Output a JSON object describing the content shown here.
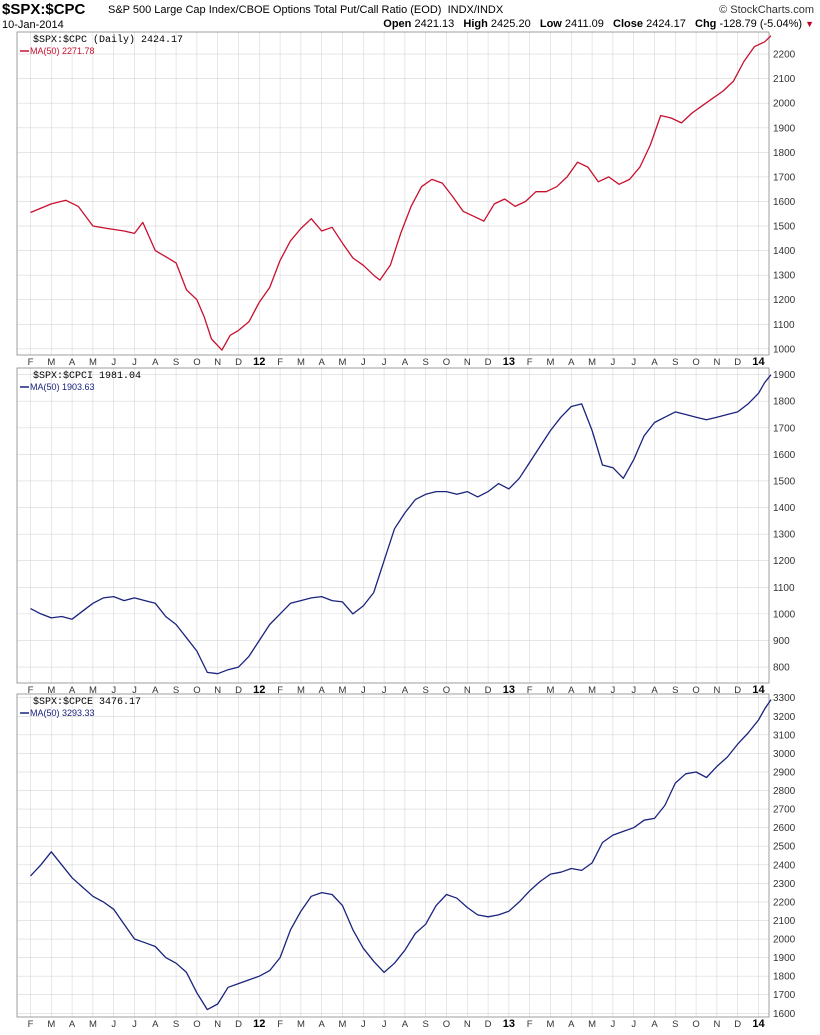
{
  "header": {
    "symbol": "$SPX:$CPC",
    "description": "S&P 500 Large Cap Index/CBOE Options Total Put/Call Ratio (EOD)",
    "exchange": "INDX/INDX",
    "date": "10-Jan-2014",
    "brand": "© StockCharts.com",
    "open_label": "Open",
    "open": "2421.13",
    "high_label": "High",
    "high": "2425.20",
    "low_label": "Low",
    "low": "2411.09",
    "close_label": "Close",
    "close": "2424.17",
    "chg_label": "Chg",
    "chg": "-128.79 (-5.04%)"
  },
  "colors": {
    "panel1": "#c8102e",
    "panel2": "#1a237e",
    "panel3": "#1a237e",
    "grid": "#d8d8d8",
    "border": "#888888"
  },
  "x_axis": {
    "labels": [
      "F",
      "M",
      "A",
      "M",
      "J",
      "J",
      "A",
      "S",
      "O",
      "N",
      "D",
      "12",
      "F",
      "M",
      "A",
      "M",
      "J",
      "J",
      "A",
      "S",
      "O",
      "N",
      "D",
      "13",
      "F",
      "M",
      "A",
      "M",
      "J",
      "J",
      "A",
      "S",
      "O",
      "N",
      "D",
      "14"
    ],
    "bold_labels": [
      "12",
      "13",
      "14"
    ]
  },
  "chart_data": [
    {
      "type": "line",
      "legend_label": "$SPX:$CPC (Daily) 2424.17",
      "ma_label": "MA(50) 2271.78",
      "ylim": [
        975,
        2290
      ],
      "y_ticks": [
        1000,
        1100,
        1200,
        1300,
        1400,
        1500,
        1600,
        1700,
        1800,
        1900,
        2000,
        2100,
        2200
      ],
      "x": [
        0.0,
        1.0,
        1.7,
        2.3,
        3.0,
        3.7,
        4.5,
        5.0,
        5.4,
        6.0,
        6.5,
        7.0,
        7.5,
        8.0,
        8.35,
        8.7,
        9.2,
        9.6,
        10.0,
        10.5,
        11.0,
        11.5,
        12.0,
        12.5,
        13.0,
        13.5,
        14.0,
        14.5,
        15.0,
        15.5,
        16.0,
        16.5,
        16.8,
        17.3,
        17.8,
        18.3,
        18.8,
        19.3,
        19.8,
        20.3,
        20.8,
        21.3,
        21.8,
        22.3,
        22.8,
        23.3,
        23.8,
        24.3,
        24.8,
        25.3,
        25.8,
        26.3,
        26.8,
        27.3,
        27.8,
        28.3,
        28.8,
        29.3,
        29.8,
        30.3,
        30.8,
        31.3,
        31.8,
        32.3,
        32.8,
        33.3,
        33.8,
        34.3,
        34.8,
        35.3,
        35.6
      ],
      "y": [
        1555,
        1590,
        1605,
        1580,
        1500,
        1490,
        1480,
        1470,
        1515,
        1400,
        1375,
        1350,
        1240,
        1200,
        1130,
        1040,
        995,
        1055,
        1075,
        1110,
        1190,
        1250,
        1360,
        1440,
        1490,
        1530,
        1480,
        1495,
        1430,
        1370,
        1340,
        1300,
        1280,
        1340,
        1470,
        1580,
        1660,
        1690,
        1675,
        1620,
        1560,
        1540,
        1520,
        1590,
        1610,
        1580,
        1600,
        1640,
        1640,
        1660,
        1700,
        1760,
        1740,
        1680,
        1700,
        1670,
        1690,
        1740,
        1830,
        1950,
        1940,
        1920,
        1960,
        1990,
        2020,
        2050,
        2090,
        2170,
        2230,
        2250,
        2275
      ]
    },
    {
      "type": "line",
      "legend_label": "$SPX:$CPCI 1981.04",
      "ma_label": "MA(50) 1903.63",
      "ylim": [
        740,
        1925
      ],
      "y_ticks": [
        800,
        900,
        1000,
        1100,
        1200,
        1300,
        1400,
        1500,
        1600,
        1700,
        1800,
        1900
      ],
      "x": [
        0.0,
        0.5,
        1.0,
        1.5,
        2.0,
        2.5,
        3.0,
        3.5,
        4.0,
        4.5,
        5.0,
        5.5,
        6.0,
        6.5,
        7.0,
        7.5,
        8.0,
        8.5,
        9.0,
        9.5,
        10.0,
        10.5,
        11.0,
        11.5,
        12.0,
        12.5,
        13.0,
        13.5,
        14.0,
        14.5,
        15.0,
        15.5,
        16.0,
        16.5,
        17.0,
        17.5,
        18.0,
        18.5,
        19.0,
        19.5,
        20.0,
        20.5,
        21.0,
        21.5,
        22.0,
        22.5,
        23.0,
        23.5,
        24.0,
        24.5,
        25.0,
        25.5,
        26.0,
        26.5,
        27.0,
        27.5,
        28.0,
        28.5,
        29.0,
        29.5,
        30.0,
        30.5,
        31.0,
        31.5,
        32.0,
        32.5,
        33.0,
        33.5,
        34.0,
        34.5,
        35.0,
        35.3,
        35.6
      ],
      "y": [
        1020,
        1000,
        985,
        990,
        980,
        1010,
        1040,
        1060,
        1065,
        1050,
        1060,
        1050,
        1040,
        990,
        960,
        910,
        860,
        780,
        775,
        790,
        800,
        840,
        900,
        960,
        1000,
        1040,
        1050,
        1060,
        1065,
        1050,
        1045,
        1000,
        1030,
        1080,
        1200,
        1320,
        1380,
        1430,
        1450,
        1460,
        1460,
        1450,
        1460,
        1440,
        1460,
        1490,
        1470,
        1510,
        1570,
        1630,
        1690,
        1740,
        1780,
        1790,
        1690,
        1560,
        1550,
        1510,
        1580,
        1670,
        1720,
        1740,
        1760,
        1750,
        1740,
        1730,
        1740,
        1750,
        1760,
        1790,
        1830,
        1870,
        1900
      ]
    },
    {
      "type": "line",
      "legend_label": "$SPX:$CPCE 3476.17",
      "ma_label": "MA(50) 3293.33",
      "ylim": [
        1580,
        3320
      ],
      "y_ticks": [
        1600,
        1700,
        1800,
        1900,
        2000,
        2100,
        2200,
        2300,
        2400,
        2500,
        2600,
        2700,
        2800,
        2900,
        3000,
        3100,
        3200,
        3300
      ],
      "x": [
        0.0,
        0.5,
        1.0,
        1.5,
        2.0,
        2.5,
        3.0,
        3.5,
        4.0,
        4.5,
        5.0,
        5.5,
        6.0,
        6.5,
        7.0,
        7.5,
        8.0,
        8.5,
        9.0,
        9.5,
        10.0,
        10.5,
        11.0,
        11.5,
        12.0,
        12.5,
        13.0,
        13.5,
        14.0,
        14.5,
        15.0,
        15.5,
        16.0,
        16.5,
        17.0,
        17.5,
        18.0,
        18.5,
        19.0,
        19.5,
        20.0,
        20.5,
        21.0,
        21.5,
        22.0,
        22.5,
        23.0,
        23.5,
        24.0,
        24.5,
        25.0,
        25.5,
        26.0,
        26.5,
        27.0,
        27.5,
        28.0,
        28.5,
        29.0,
        29.5,
        30.0,
        30.5,
        31.0,
        31.5,
        32.0,
        32.5,
        33.0,
        33.5,
        34.0,
        34.5,
        35.0,
        35.3,
        35.6
      ],
      "y": [
        2340,
        2400,
        2470,
        2400,
        2330,
        2280,
        2230,
        2200,
        2160,
        2080,
        2000,
        1980,
        1960,
        1900,
        1870,
        1820,
        1710,
        1620,
        1650,
        1740,
        1760,
        1780,
        1800,
        1830,
        1900,
        2050,
        2150,
        2230,
        2250,
        2240,
        2180,
        2050,
        1950,
        1880,
        1820,
        1870,
        1940,
        2030,
        2080,
        2180,
        2240,
        2220,
        2170,
        2130,
        2120,
        2130,
        2150,
        2200,
        2260,
        2310,
        2350,
        2360,
        2380,
        2370,
        2410,
        2520,
        2560,
        2580,
        2600,
        2640,
        2650,
        2720,
        2840,
        2890,
        2900,
        2870,
        2930,
        2980,
        3050,
        3110,
        3180,
        3240,
        3290
      ]
    }
  ]
}
